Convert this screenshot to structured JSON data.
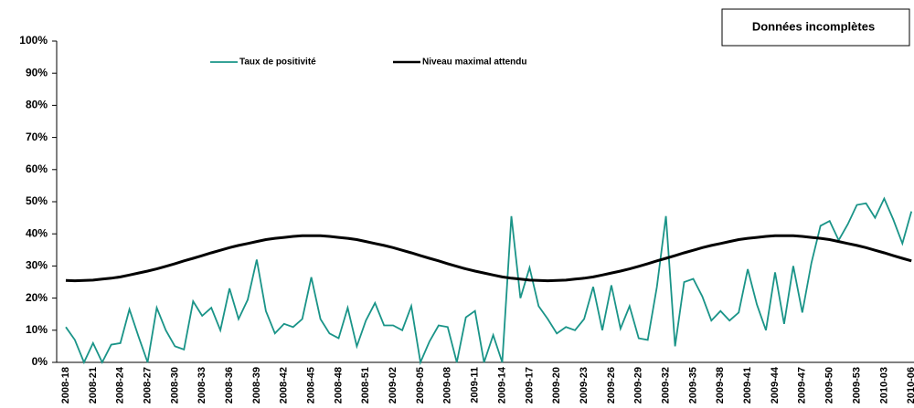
{
  "chart_data": {
    "type": "line",
    "annotation": "Données incomplètes",
    "categories": [
      "2008-18",
      null,
      null,
      "2008-21",
      null,
      null,
      "2008-24",
      null,
      null,
      "2008-27",
      null,
      null,
      "2008-30",
      null,
      null,
      "2008-33",
      null,
      null,
      "2008-36",
      null,
      null,
      "2008-39",
      null,
      null,
      "2008-42",
      null,
      null,
      "2008-45",
      null,
      null,
      "2008-48",
      null,
      null,
      "2008-51",
      null,
      null,
      "2009-02",
      null,
      null,
      "2009-05",
      null,
      null,
      "2009-08",
      null,
      null,
      "2009-11",
      null,
      null,
      "2009-14",
      null,
      null,
      "2009-17",
      null,
      null,
      "2009-20",
      null,
      null,
      "2009-23",
      null,
      null,
      "2009-26",
      null,
      null,
      "2009-29",
      null,
      null,
      "2009-32",
      null,
      null,
      "2009-35",
      null,
      null,
      "2009-38",
      null,
      null,
      "2009-41",
      null,
      null,
      "2009-44",
      null,
      null,
      "2009-47",
      null,
      null,
      "2009-50",
      null,
      null,
      "2009-53",
      null,
      null,
      "2010-03",
      null,
      null,
      "2010-06"
    ],
    "series": [
      {
        "name": "Taux de positivité",
        "color": "#1a9488",
        "values": [
          11,
          7,
          0,
          6,
          0,
          5.5,
          6,
          16.5,
          8,
          0,
          17,
          10,
          5,
          4,
          19,
          14.5,
          17,
          10,
          23,
          13.5,
          19.5,
          32,
          16,
          9,
          12,
          11,
          13.5,
          26.5,
          13.5,
          9,
          7.5,
          17,
          5,
          13,
          18.5,
          11.5,
          11.5,
          10,
          17.5,
          0,
          6.5,
          11.5,
          11,
          0,
          14,
          16,
          0,
          8.5,
          0,
          45.5,
          20,
          29.5,
          17.5,
          13.5,
          9,
          11,
          10,
          13.5,
          23.5,
          10,
          24,
          10.5,
          17.5,
          7.5,
          7,
          23.5,
          45.5,
          5,
          25,
          26,
          20.5,
          13,
          16,
          13,
          15.5,
          29,
          18,
          10,
          28,
          12,
          30,
          15.5,
          31,
          42.5,
          44,
          38,
          43,
          49,
          49.5,
          45,
          51,
          44.5,
          37,
          47
        ]
      },
      {
        "name": "Niveau maximal attendu",
        "color": "#000000",
        "values": [
          25.5,
          25.4,
          25.5,
          25.6,
          25.9,
          26.2,
          26.6,
          27.2,
          27.8,
          28.4,
          29.1,
          29.9,
          30.7,
          31.6,
          32.4,
          33.2,
          34.1,
          34.9,
          35.7,
          36.4,
          37.0,
          37.6,
          38.2,
          38.6,
          38.9,
          39.2,
          39.4,
          39.4,
          39.4,
          39.2,
          38.9,
          38.6,
          38.2,
          37.6,
          37.0,
          36.4,
          35.7,
          34.9,
          34.1,
          33.2,
          32.4,
          31.6,
          30.7,
          29.9,
          29.1,
          28.4,
          27.8,
          27.2,
          26.6,
          26.2,
          25.9,
          25.6,
          25.5,
          25.4,
          25.5,
          25.6,
          25.9,
          26.2,
          26.6,
          27.2,
          27.8,
          28.4,
          29.1,
          29.9,
          30.7,
          31.6,
          32.4,
          33.2,
          34.1,
          34.9,
          35.7,
          36.4,
          37.0,
          37.6,
          38.2,
          38.6,
          38.9,
          39.2,
          39.4,
          39.4,
          39.4,
          39.2,
          38.9,
          38.6,
          38.2,
          37.6,
          37.0,
          36.4,
          35.7,
          34.9,
          34.1,
          33.2,
          32.4,
          31.6
        ]
      }
    ],
    "ylim": [
      0,
      100
    ],
    "yticks": [
      {
        "value": 0,
        "label": "0%"
      },
      {
        "value": 10,
        "label": "10%"
      },
      {
        "value": 20,
        "label": "20%"
      },
      {
        "value": 30,
        "label": "30%"
      },
      {
        "value": 40,
        "label": "40%"
      },
      {
        "value": 50,
        "label": "50%"
      },
      {
        "value": 60,
        "label": "60%"
      },
      {
        "value": 70,
        "label": "70%"
      },
      {
        "value": 80,
        "label": "80%"
      },
      {
        "value": 90,
        "label": "90%"
      },
      {
        "value": 100,
        "label": "100%"
      }
    ],
    "legend": "top"
  }
}
